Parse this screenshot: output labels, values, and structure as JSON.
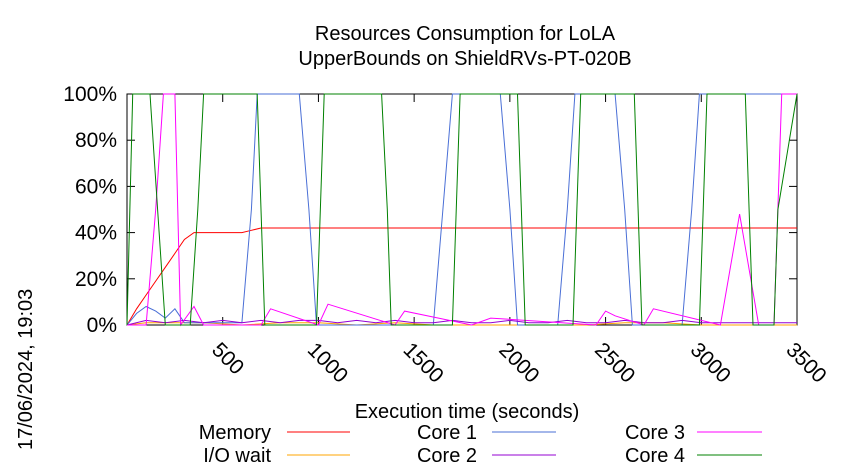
{
  "chart_data": {
    "type": "line",
    "title_line1": "Resources Consumption for LoLA",
    "title_line2": "UpperBounds on ShieldRVs-PT-020B",
    "xlabel": "Execution time (seconds)",
    "ylabel": "",
    "timestamp": "17/06/2024, 19:03",
    "xlim": [
      0,
      3500
    ],
    "ylim": [
      0,
      100
    ],
    "xticks": [
      500,
      1000,
      1500,
      2000,
      2500,
      3000,
      3500
    ],
    "xtick_labels": [
      "500",
      "1000",
      "1500",
      "2000",
      "2500",
      "3000",
      "3500"
    ],
    "yticks": [
      0,
      20,
      40,
      60,
      80,
      100
    ],
    "ytick_labels": [
      "0%",
      "20%",
      "40%",
      "60%",
      "80%",
      "100%"
    ],
    "grid": false,
    "legend_position": "bottom",
    "series": [
      {
        "name": "Memory",
        "color": "#ff0000",
        "x": [
          0,
          50,
          100,
          150,
          200,
          250,
          300,
          350,
          400,
          450,
          500,
          550,
          600,
          650,
          700,
          800,
          1000,
          1500,
          2000,
          2500,
          3000,
          3500
        ],
        "y": [
          0,
          7,
          13,
          19,
          25,
          31,
          37,
          40,
          40,
          40,
          40,
          40,
          40,
          41,
          42,
          42,
          42,
          42,
          42,
          42,
          42,
          42
        ]
      },
      {
        "name": "I/O wait",
        "color": "#ffa500",
        "x": [
          0,
          100,
          200,
          300,
          400,
          600,
          800,
          1000,
          1200,
          1400,
          1600,
          1800,
          2000,
          2200,
          2400,
          2600,
          2800,
          3000,
          3200,
          3500
        ],
        "y": [
          0,
          1,
          1,
          1,
          1,
          0,
          1,
          1,
          0,
          1,
          0,
          0,
          0,
          0,
          0,
          1,
          1,
          0,
          0,
          0
        ]
      },
      {
        "name": "Core 1",
        "color": "#4a6fd6",
        "x": [
          0,
          50,
          100,
          150,
          200,
          250,
          300,
          500,
          600,
          650,
          680,
          900,
          950,
          990,
          1600,
          1650,
          1700,
          1950,
          2000,
          2040,
          2250,
          2300,
          2340,
          2550,
          2600,
          2640,
          2900,
          2950,
          2990,
          3500
        ],
        "y": [
          0,
          5,
          8,
          6,
          3,
          7,
          1,
          1,
          1,
          50,
          100,
          100,
          50,
          0,
          0,
          50,
          100,
          100,
          50,
          0,
          0,
          50,
          100,
          100,
          50,
          0,
          0,
          50,
          100,
          100
        ]
      },
      {
        "name": "Core 2",
        "color": "#9400d3",
        "x": [
          0,
          100,
          200,
          300,
          400,
          500,
          600,
          700,
          800,
          900,
          1000,
          1100,
          1200,
          1300,
          1400,
          1500,
          1600,
          1700,
          1800,
          1900,
          2000,
          2100,
          2200,
          2300,
          2400,
          2500,
          2600,
          2700,
          2800,
          2900,
          3000,
          3100,
          3200,
          3300,
          3400,
          3500
        ],
        "y": [
          0,
          2,
          1,
          2,
          1,
          2,
          1,
          2,
          1,
          2,
          2,
          1,
          2,
          1,
          2,
          1,
          1,
          2,
          1,
          1,
          2,
          1,
          1,
          2,
          1,
          1,
          2,
          1,
          1,
          2,
          1,
          1,
          1,
          1,
          1,
          1
        ]
      },
      {
        "name": "Core 3",
        "color": "#ff00ff",
        "x": [
          0,
          100,
          150,
          190,
          250,
          280,
          350,
          400,
          700,
          750,
          1000,
          1050,
          1400,
          1450,
          1800,
          1900,
          2450,
          2500,
          2550,
          2700,
          2750,
          3100,
          3200,
          3300,
          3380,
          3420,
          3500
        ],
        "y": [
          0,
          0,
          50,
          100,
          100,
          0,
          8,
          0,
          0,
          7,
          0,
          9,
          0,
          6,
          0,
          3,
          0,
          6,
          4,
          0,
          7,
          0,
          48,
          0,
          0,
          100,
          100
        ]
      },
      {
        "name": "Core 4",
        "color": "#008000",
        "x": [
          0,
          30,
          60,
          120,
          160,
          200,
          330,
          370,
          400,
          680,
          720,
          990,
          1030,
          1330,
          1360,
          1380,
          1700,
          1740,
          2040,
          2080,
          2330,
          2370,
          2650,
          2690,
          2990,
          3030,
          3230,
          3250,
          3270,
          3380,
          3400,
          3500
        ],
        "y": [
          0,
          100,
          100,
          100,
          50,
          0,
          0,
          50,
          100,
          100,
          0,
          0,
          100,
          100,
          50,
          0,
          0,
          100,
          100,
          0,
          0,
          100,
          100,
          0,
          0,
          100,
          100,
          50,
          0,
          0,
          50,
          100
        ]
      }
    ]
  }
}
